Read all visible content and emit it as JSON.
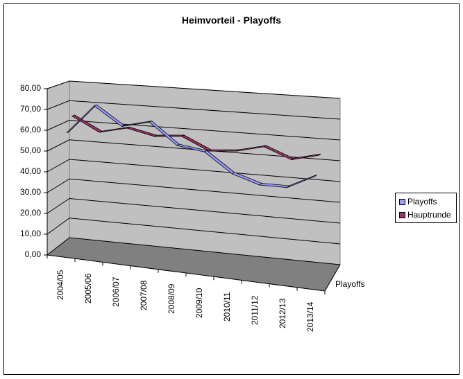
{
  "chart_data": {
    "type": "line",
    "subtype": "3d-line",
    "title": "Heimvorteil - Playoffs",
    "xlabel": "",
    "ylabel": "",
    "categories": [
      "2004/05",
      "2005/06",
      "2006/07",
      "2007/08",
      "2008/09",
      "2009/10",
      "2010/11",
      "2011/12",
      "2012/13",
      "2013/14"
    ],
    "series": [
      {
        "name": "Playoffs",
        "color": "#9999FF",
        "values": [
          58,
          72,
          63,
          66,
          56,
          54,
          45,
          41,
          41,
          47
        ]
      },
      {
        "name": "Hauptrunde",
        "color": "#993366",
        "values": [
          65,
          58,
          61,
          58,
          59,
          53,
          54,
          57,
          52,
          55
        ]
      }
    ],
    "y_ticks": [
      "0,00",
      "10,00",
      "20,00",
      "30,00",
      "40,00",
      "50,00",
      "60,00",
      "70,00",
      "80,00"
    ],
    "ylim": [
      0,
      80
    ],
    "z_axis_label": "Playoffs",
    "grid": true,
    "legend_position": "right",
    "wall_color": "#C0C0C0",
    "floor_color": "#808080"
  },
  "legend": {
    "items": [
      {
        "label": "Playoffs",
        "color": "#9999FF"
      },
      {
        "label": "Hauptrunde",
        "color": "#993366"
      }
    ]
  }
}
